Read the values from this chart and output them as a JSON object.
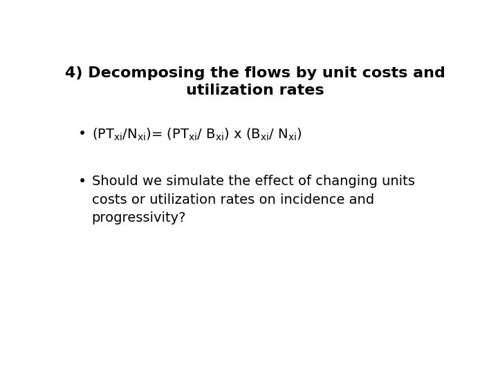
{
  "title_line1": "4) Decomposing the flows by unit costs and",
  "title_line2": "utilization rates",
  "bullet2_line1": "Should we simulate the effect of changing units",
  "bullet2_line2": "costs or utilization rates on incidence and",
  "bullet2_line3": "progressivity?",
  "background_color": "#ffffff",
  "text_color": "#000000",
  "title_fontsize": 16,
  "body_fontsize": 14,
  "bullet1_fontsize": 14,
  "font_family": "DejaVu Sans"
}
